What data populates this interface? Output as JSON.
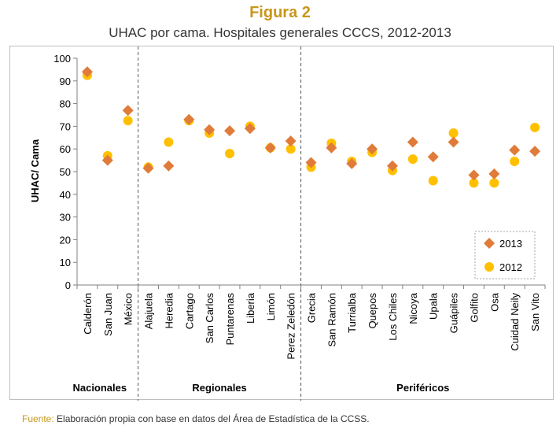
{
  "figure": {
    "label": "Figura 2",
    "subtitle": "UHAC por cama. Hospitales generales CCCS, 2012-2013"
  },
  "source": {
    "label": "Fuente:",
    "text": " Elaboración propia con base en datos del Área de Estadística de la CCSS."
  },
  "colors": {
    "title": "#C9961A",
    "series_2013": "#E07B39",
    "series_2012": "#FFC000"
  },
  "chart_data": {
    "type": "scatter",
    "ylabel": "UHAC/ Cama",
    "xlabel": "",
    "ylim": [
      0,
      100
    ],
    "yticks": [
      0,
      10,
      20,
      30,
      40,
      50,
      60,
      70,
      80,
      90,
      100
    ],
    "grid": false,
    "legend_position": "bottom-right",
    "categories": [
      "Calderón",
      "San Juan",
      "México",
      "Alajuela",
      "Heredia",
      "Cartago",
      "San Carlos",
      "Puntarenas",
      "Liberia",
      "Limón",
      "Perez Zeledón",
      "Grecia",
      "San Ramón",
      "Turrialba",
      "Quepos",
      "Los Chiles",
      "Nicoya",
      "Upala",
      "Guápiles",
      "Golfito",
      "Osa",
      "Cuidad Neily",
      "San Vito"
    ],
    "groups": [
      {
        "label": "Nacionales",
        "start": 0,
        "end": 2
      },
      {
        "label": "Regionales",
        "start": 3,
        "end": 10
      },
      {
        "label": "Periféricos",
        "start": 11,
        "end": 22
      }
    ],
    "series": [
      {
        "name": "2013",
        "marker": "diamond",
        "color": "#E07B39",
        "values": [
          94,
          55,
          77,
          51.5,
          52.5,
          73,
          68.5,
          68,
          69,
          60.5,
          63.5,
          54,
          60.5,
          53.5,
          60,
          52.5,
          63,
          56.5,
          63,
          48.5,
          49,
          59.5,
          59
        ]
      },
      {
        "name": "2012",
        "marker": "circle",
        "color": "#FFC000",
        "values": [
          92.5,
          57,
          72.5,
          52,
          63,
          72.5,
          67,
          58,
          70,
          60.5,
          60,
          52,
          62.5,
          54.5,
          58.5,
          50.5,
          55.5,
          46,
          67,
          45,
          45,
          54.5,
          69.5
        ]
      }
    ]
  }
}
